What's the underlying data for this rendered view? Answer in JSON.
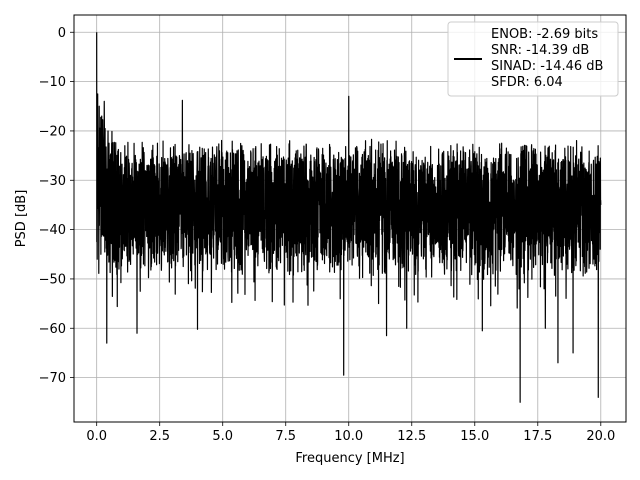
{
  "chart_data": {
    "type": "line",
    "title": "",
    "xlabel": "Frequency [MHz]",
    "ylabel": "PSD [dB]",
    "xlim": [
      -0.9,
      21.0
    ],
    "ylim": [
      -79,
      3.5
    ],
    "x_ticks": [
      0.0,
      2.5,
      5.0,
      7.5,
      10.0,
      12.5,
      15.0,
      17.5,
      20.0
    ],
    "x_tick_labels": [
      "0.0",
      "2.5",
      "5.0",
      "7.5",
      "10.0",
      "12.5",
      "15.0",
      "17.5",
      "20.0"
    ],
    "y_ticks": [
      0,
      -10,
      -20,
      -30,
      -40,
      -50,
      -60,
      -70
    ],
    "y_tick_labels": [
      "0",
      "−10",
      "−20",
      "−30",
      "−40",
      "−50",
      "−60",
      "−70"
    ],
    "grid": true,
    "legend_position": "top-right",
    "series": [
      {
        "name": "ENOB: -2.69 bits\nSNR: -14.39 dB\nSINAD: -14.46 dB\nSFDR: 6.04",
        "legend_lines": [
          "ENOB: -2.69 bits",
          "SNR: -14.39 dB",
          "SINAD: -14.46 dB",
          "SFDR: 6.04"
        ],
        "color": "#000000",
        "x_range": [
          0.0,
          20.0
        ],
        "noise_floor_db": -32,
        "upper_envelope_db": -24,
        "lower_envelope_db": -43,
        "points": [
          [
            0.0,
            0.0
          ],
          [
            0.02,
            -46.0
          ],
          [
            0.04,
            -12.5
          ],
          [
            0.1,
            -15.0
          ],
          [
            0.2,
            -17.0
          ],
          [
            0.3,
            -14.0
          ],
          [
            0.4,
            -63.0
          ],
          [
            0.45,
            -20.0
          ],
          [
            1.6,
            -61.0
          ],
          [
            3.4,
            -13.8
          ],
          [
            4.0,
            -60.2
          ],
          [
            9.8,
            -69.5
          ],
          [
            10.0,
            -13.0
          ],
          [
            11.5,
            -61.5
          ],
          [
            12.3,
            -60.0
          ],
          [
            15.3,
            -60.5
          ],
          [
            16.8,
            -75.0
          ],
          [
            17.8,
            -60.0
          ],
          [
            18.3,
            -67.0
          ],
          [
            18.9,
            -65.0
          ],
          [
            19.9,
            -74.0
          ],
          [
            20.0,
            -35.0
          ]
        ]
      }
    ]
  },
  "colors": {
    "line": "#000000",
    "grid": "#b0b0b0",
    "axes": "#000000",
    "background": "#ffffff"
  }
}
